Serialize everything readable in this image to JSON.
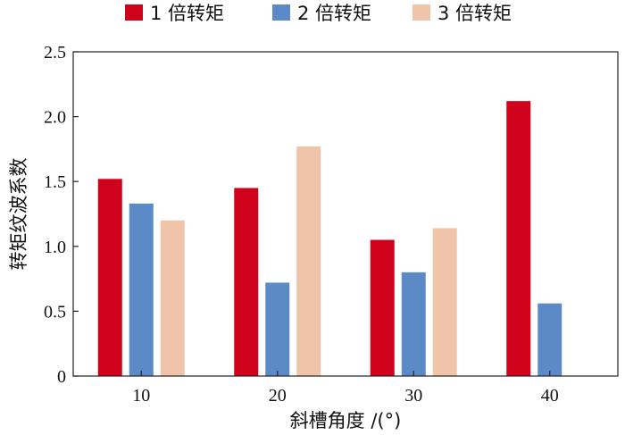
{
  "chart_data": {
    "type": "bar",
    "title": "",
    "xlabel": "斜槽角度 /(°)",
    "ylabel": "转矩纹波系数",
    "categories": [
      "10",
      "20",
      "30",
      "40"
    ],
    "ylim": [
      0,
      2.5
    ],
    "yticks": [
      0,
      0.5,
      1.0,
      1.5,
      2.0,
      2.5
    ],
    "ytick_labels": [
      "0",
      "0.5",
      "1.0",
      "1.5",
      "2.0",
      "2.5"
    ],
    "grid": false,
    "legend_position": "top",
    "series": [
      {
        "name": "1 倍转矩",
        "color": "#d0021b",
        "values": [
          1.52,
          1.45,
          1.05,
          2.12
        ]
      },
      {
        "name": "2 倍转矩",
        "color": "#5b8ac6",
        "values": [
          1.33,
          0.72,
          0.8,
          0.56
        ]
      },
      {
        "name": "3 倍转矩",
        "color": "#f0c4a8",
        "values": [
          1.2,
          1.77,
          1.14,
          null
        ]
      }
    ]
  }
}
